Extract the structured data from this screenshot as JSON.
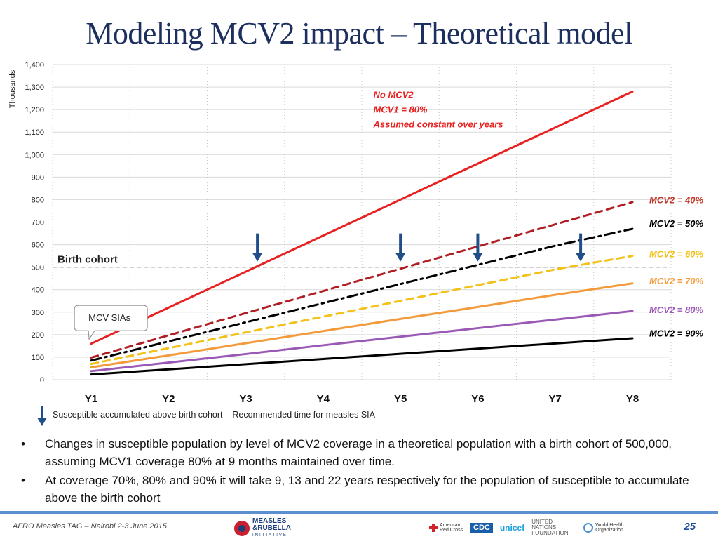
{
  "slide": {
    "title": "Modeling MCV2 impact – Theoretical model",
    "legend_note": "Susceptible accumulated above birth cohort – Recommended time for measles SIA",
    "bullets": [
      "Changes in susceptible population by level of MCV2 coverage in a theoretical population with a birth cohort of 500,000, assuming MCV1 coverage 80% at 9 months maintained over time.",
      "At coverage 70%, 80% and 90% it will take 9, 13 and 22 years respectively for the population of susceptible to accumulate above the birth cohort"
    ],
    "bullet_symbol": "•",
    "footer_text": "AFRO Measles TAG – Nairobi 2-3 June 2015",
    "page_number": "25",
    "logos": {
      "mr_line1": "MEASLES",
      "mr_line2": "&RUBELLA",
      "mr_line3": "INITIATIVE",
      "redcross": "American Red Cross",
      "cdc": "CDC",
      "unicef": "unicef",
      "un": "UNITED NATIONS FOUNDATION",
      "who": "World Health Organization"
    }
  },
  "chart_data": {
    "type": "line",
    "title": "Modeling MCV2 impact – Theoretical model",
    "ylabel": "Thousands",
    "xlabel": "",
    "ylim": [
      0,
      1400
    ],
    "yticks": [
      0,
      100,
      200,
      300,
      400,
      500,
      600,
      700,
      800,
      900,
      1000,
      1100,
      1200,
      1300,
      1400
    ],
    "ytick_labels": [
      "0",
      "100",
      "200",
      "300",
      "400",
      "500",
      "600",
      "700",
      "800",
      "900",
      "1,000",
      "1,100",
      "1,200",
      "1,300",
      "1,400"
    ],
    "categories": [
      "Y1",
      "Y2",
      "Y3",
      "Y4",
      "Y5",
      "Y6",
      "Y7",
      "Y8"
    ],
    "grid": "vertical dotted",
    "series": [
      {
        "name": "No MCV2",
        "color": "#e8201f",
        "dash": "solid",
        "values": [
          160,
          320,
          480,
          640,
          800,
          960,
          1120,
          1280
        ]
      },
      {
        "name": "MCV2 = 40%",
        "color": "#b01e24",
        "dash": "dash",
        "values": [
          98,
          197,
          296,
          394,
          493,
          592,
          690,
          789
        ]
      },
      {
        "name": "MCV2 = 50%",
        "color": "#000000",
        "dash": "dashdot",
        "values": [
          85,
          170,
          255,
          340,
          425,
          510,
          595,
          670
        ]
      },
      {
        "name": "MCV2 = 60%",
        "color": "#f2c21b",
        "dash": "dash",
        "values": [
          70,
          140,
          210,
          280,
          350,
          420,
          490,
          550
        ]
      },
      {
        "name": "MCV2 = 70%",
        "color": "#f39b3b",
        "dash": "solid",
        "values": [
          55,
          108,
          162,
          216,
          270,
          323,
          377,
          428
        ]
      },
      {
        "name": "MCV2 = 80%",
        "color": "#9b59b6",
        "dash": "solid",
        "values": [
          38,
          76,
          114,
          153,
          191,
          229,
          267,
          305
        ]
      },
      {
        "name": "MCV2 = 90%",
        "color": "#000000",
        "dash": "solid",
        "values": [
          23,
          46,
          69,
          92,
          115,
          138,
          161,
          184
        ]
      }
    ],
    "series_labels": [
      {
        "text": "MCV2 = 40%",
        "color": "#c0392b",
        "y": 800
      },
      {
        "text": "MCV2 = 50%",
        "color": "#000000",
        "y": 695
      },
      {
        "text": "MCV2 = 60%",
        "color": "#f2c21b",
        "y": 560
      },
      {
        "text": "MCV2 = 70%",
        "color": "#f39b3b",
        "y": 440
      },
      {
        "text": "MCV2 = 80%",
        "color": "#9b59b6",
        "y": 312
      },
      {
        "text": "MCV2 = 90%",
        "color": "#000000",
        "y": 208
      }
    ],
    "no_mcv2_annotation": {
      "lines": [
        "No MCV2",
        "MCV1 = 80%",
        "Assumed constant over years"
      ],
      "color": "#e8201f",
      "x": 4.65,
      "y": 1265
    },
    "birth_cohort": {
      "value": 500,
      "label": "Birth cohort"
    },
    "sia_arrows_x": [
      3.15,
      5.0,
      6.0,
      7.33
    ],
    "sia_arrow_color": "#1f4e89",
    "callout": {
      "text": "MCV SIAs",
      "x": 1.4,
      "y": 280
    }
  }
}
